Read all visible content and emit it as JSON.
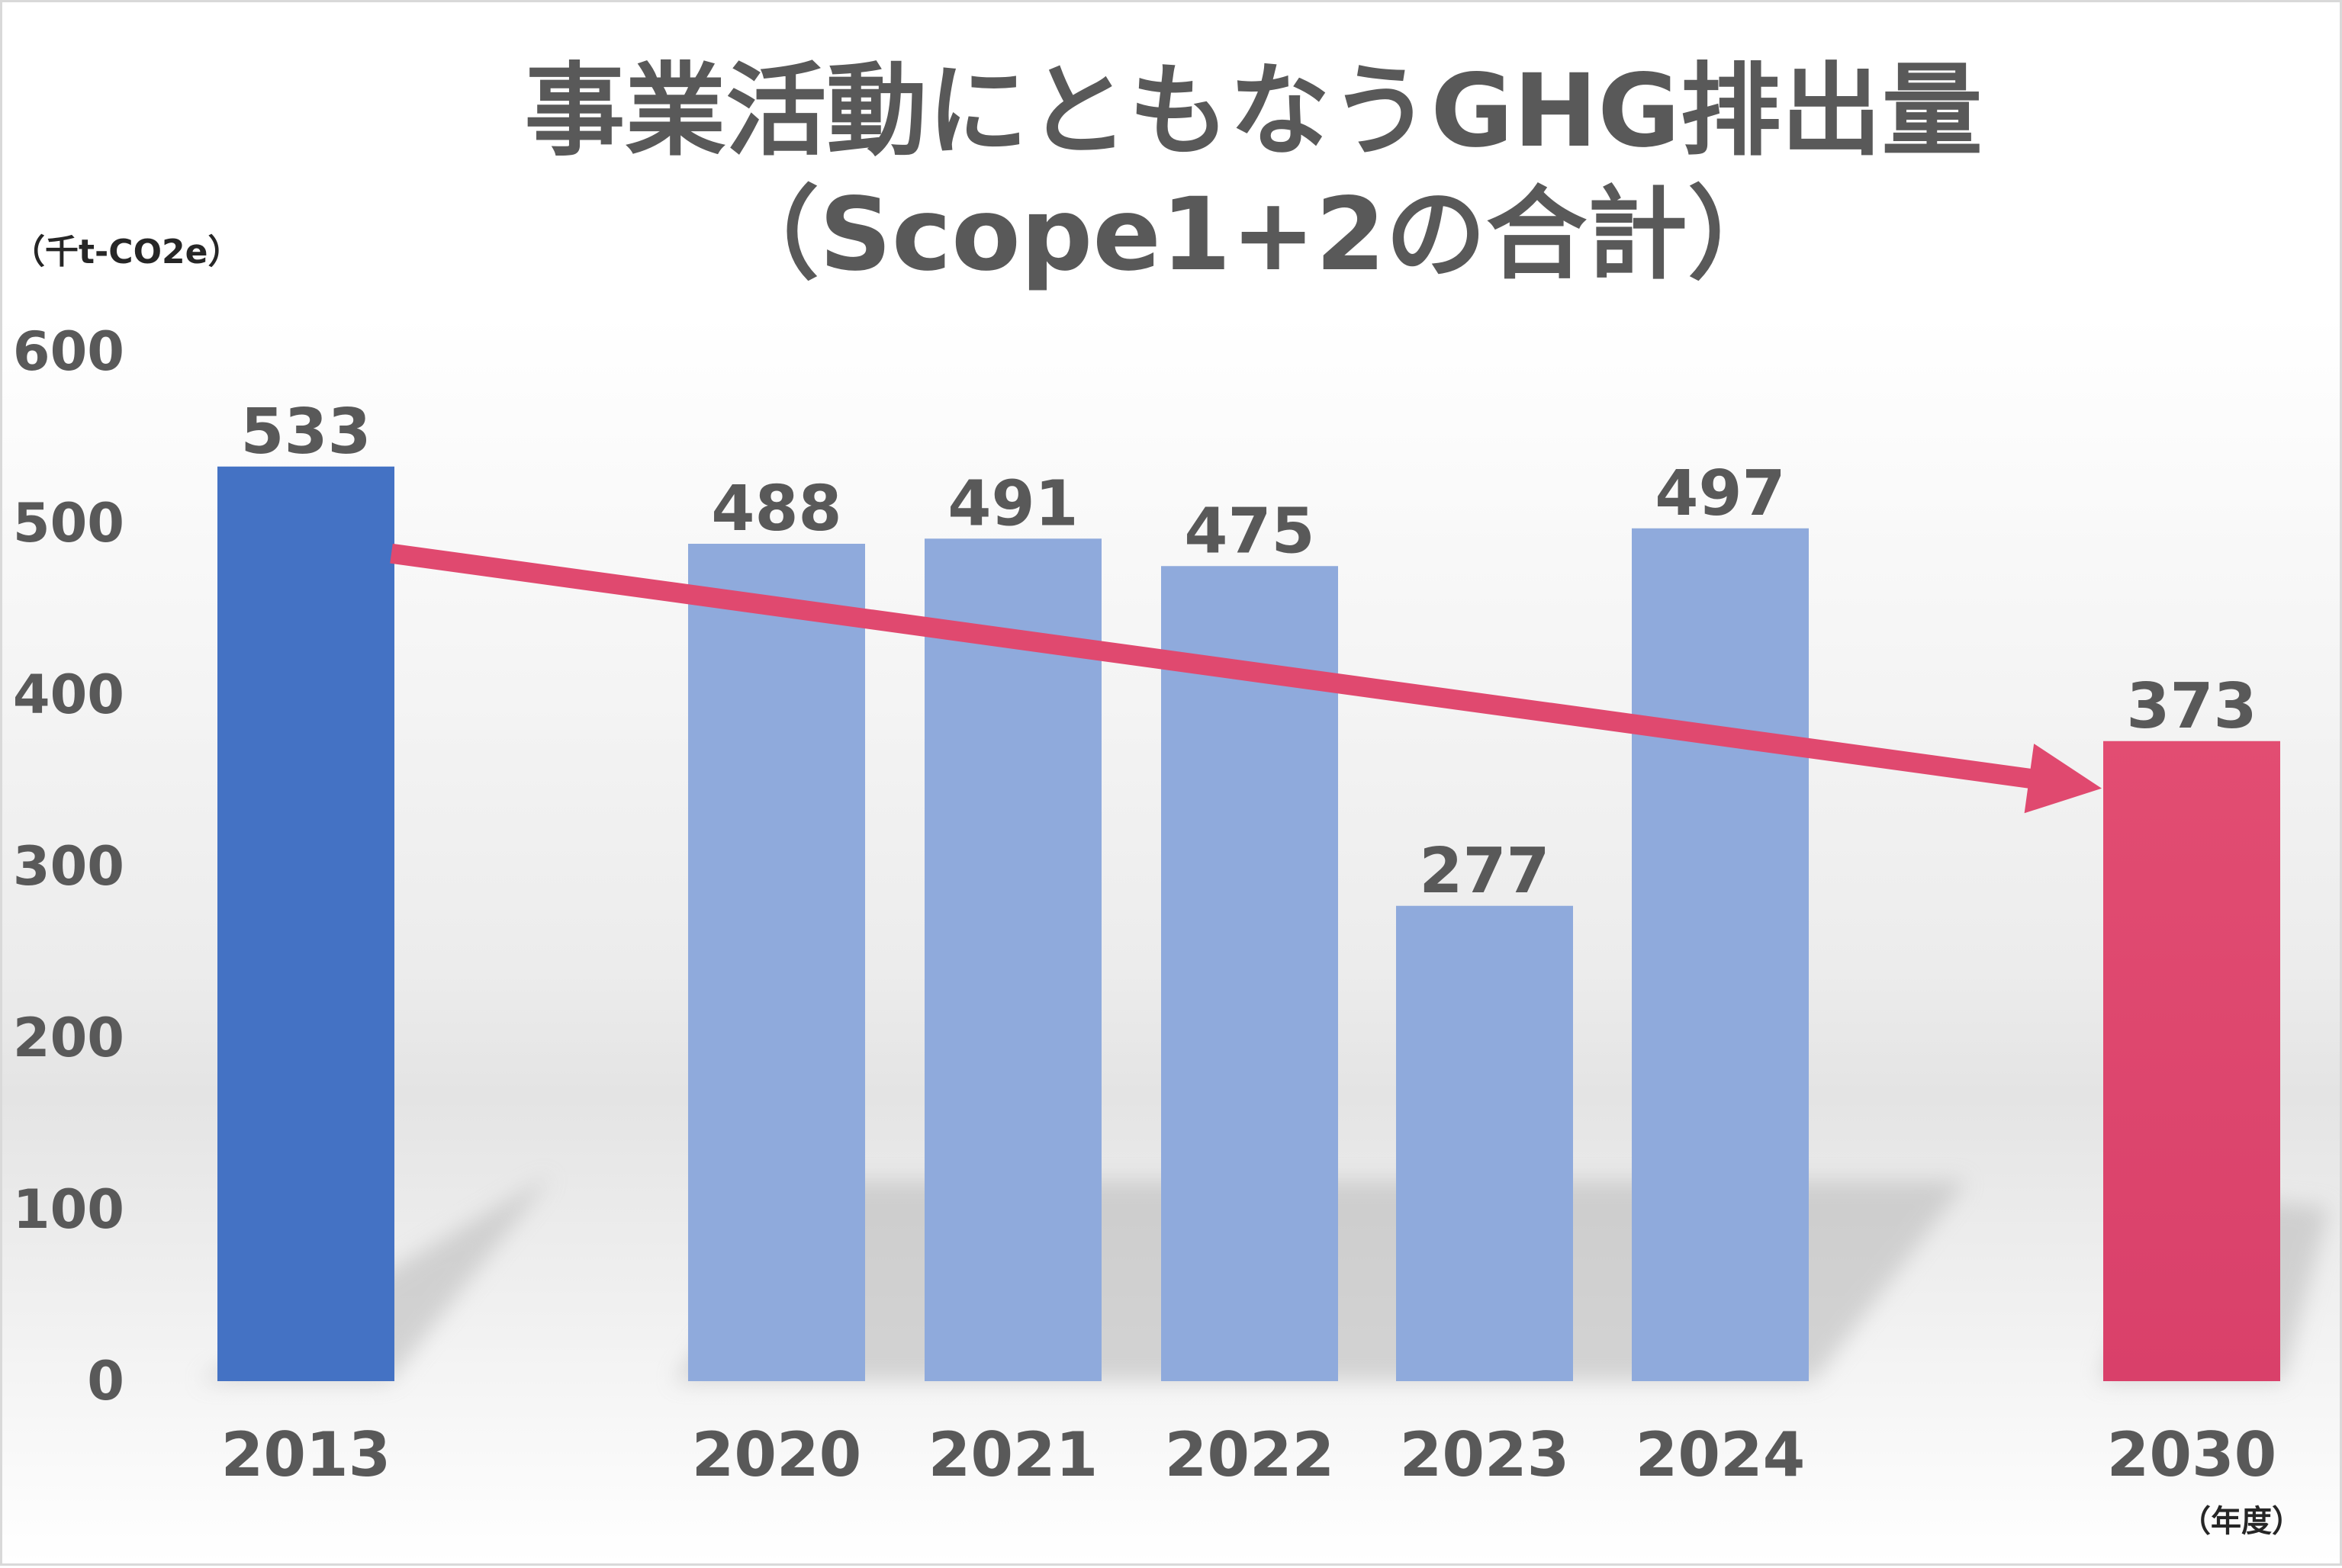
{
  "chart_data": {
    "type": "bar",
    "title": "事業活動にともなうGHG排出量",
    "subtitle": "（Scope1+2の合計）",
    "ylabel": "（千t-CO2e）",
    "xlabel": "（年度）",
    "ylim": [
      0,
      600
    ],
    "yticks": [
      "0",
      "100",
      "200",
      "300",
      "400",
      "500",
      "600"
    ],
    "grid": false,
    "categories": [
      "2013",
      "2020",
      "2021",
      "2022",
      "2023",
      "2024",
      "2030"
    ],
    "values": [
      533,
      488,
      491,
      475,
      277,
      497,
      373
    ],
    "value_labels": [
      "533",
      "488",
      "491",
      "475",
      "277",
      "497",
      "373"
    ],
    "bar_colors": [
      "#4472c4",
      "#8faadc",
      "#8faadc",
      "#8faadc",
      "#8faadc",
      "#8faadc",
      "#e0496f"
    ],
    "trend_arrow": {
      "from": "2013",
      "to": "2030",
      "color": "#e0496f"
    }
  }
}
